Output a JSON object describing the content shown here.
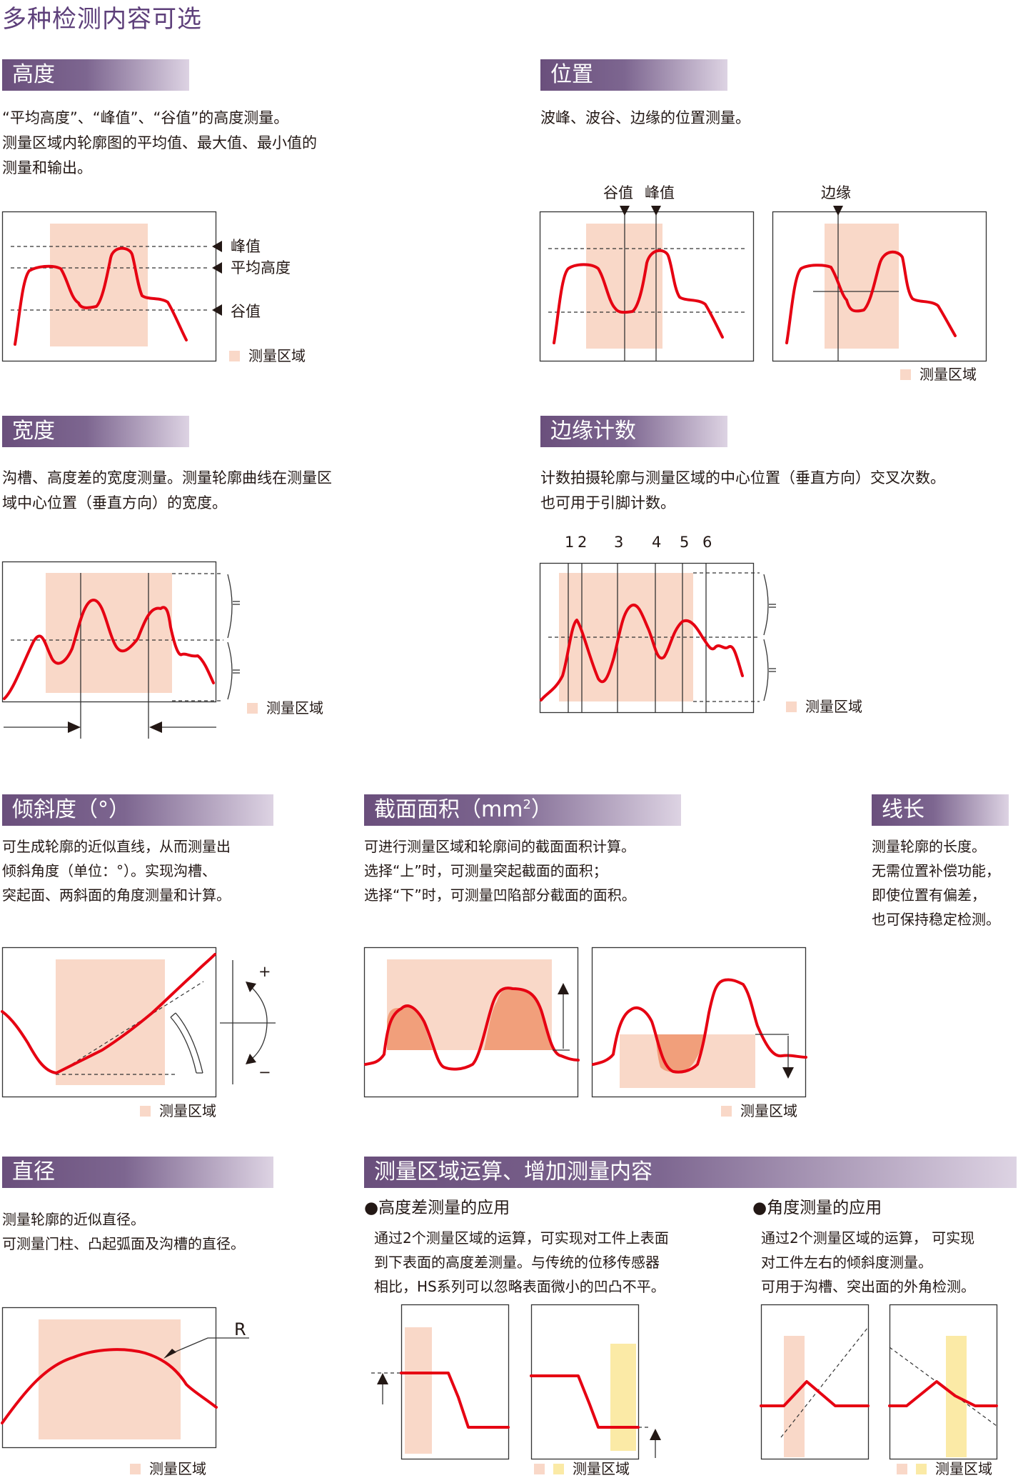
{
  "page_title": "多种检测内容可选",
  "legend_label": "测量区域",
  "height": {
    "title": "高度",
    "desc": "“平均高度”、“峰值”、“谷值”的高度测量。\n测量区域内轮廓图的平均值、最大值、最小值的\n测量和输出。",
    "label_peak": "峰值",
    "label_avg": "平均高度",
    "label_valley": "谷值"
  },
  "position": {
    "title": "位置",
    "desc": "波峰、波谷、边缘的位置测量。",
    "label_valley": "谷值",
    "label_peak": "峰值",
    "label_edge": "边缘"
  },
  "width": {
    "title": "宽度",
    "desc": "沟槽、高度差的宽度测量。测量轮廓曲线在测量区\n域中心位置（垂直方向）的宽度。"
  },
  "edge_count": {
    "title": "边缘计数",
    "desc": "计数拍摄轮廓与测量区域的中心位置（垂直方向）交叉次数。\n也可用于引脚计数。",
    "counts": [
      "1",
      "2",
      "3",
      "4",
      "5",
      "6"
    ]
  },
  "inclination": {
    "title": "倾斜度（°）",
    "desc": "可生成轮廓的近似直线，从而测量出\n倾斜角度（单位：°）。实现沟槽、\n突起面、两斜面的角度测量和计算。",
    "plus": "+",
    "minus": "−"
  },
  "area_section": {
    "title_main": "截面面积（mm",
    "title_sup": "2",
    "title_end": "）",
    "desc": "可进行测量区域和轮廓间的截面面积计算。\n选择“上”时，可测量突起截面的面积；\n选择“下”时，可测量凹陷部分截面的面积。"
  },
  "line_length": {
    "title": "线长",
    "desc": "测量轮廓的长度。\n无需位置补偿功能，\n即使位置有偏差，\n也可保持稳定检测。"
  },
  "diameter": {
    "title": "直径",
    "desc": "测量轮廓的近似直径。\n可测量门柱、凸起弧面及沟槽的直径。",
    "label_r": "R"
  },
  "calc": {
    "title": "测量区域运算、增加测量内容",
    "height_diff_title": "●高度差测量的应用",
    "height_diff_desc": "通过2个测量区域的运算，可实现对工件上表面\n到下表面的高度差测量。与传统的位移传感器\n相比，HS系列可以忽略表面微小的凹凸不平。",
    "angle_title": "●角度测量的应用",
    "angle_desc": "通过2个测量区域的运算， 可实现\n对工件左右的倾斜度测量。\n可用于沟槽、突出面的外角检测。"
  },
  "colors": {
    "accent": "#5d3f7a",
    "profile": "#e60012",
    "area": "#f9d8c8",
    "area2": "#fbeaa6"
  }
}
